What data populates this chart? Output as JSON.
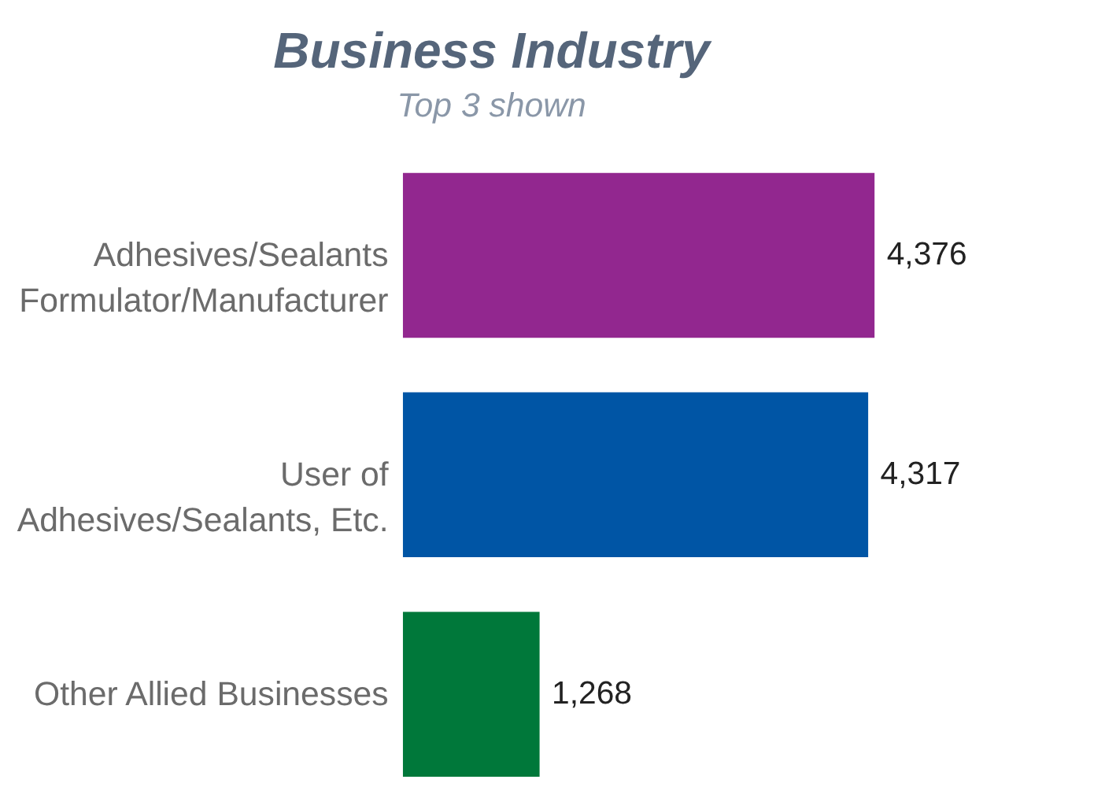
{
  "chart_data": {
    "type": "bar",
    "orientation": "horizontal",
    "title": "Business Industry",
    "subtitle": "Top 3 shown",
    "categories": [
      "Adhesives/Sealants\nFormulator/Manufacturer",
      "User of\nAdhesives/Sealants, Etc.",
      "Other Allied Businesses"
    ],
    "values": [
      4376,
      4317,
      1268
    ],
    "value_labels": [
      "4,376",
      "4,317",
      "1,268"
    ],
    "colors": [
      "#92278f",
      "#0055a5",
      "#00783a"
    ]
  }
}
